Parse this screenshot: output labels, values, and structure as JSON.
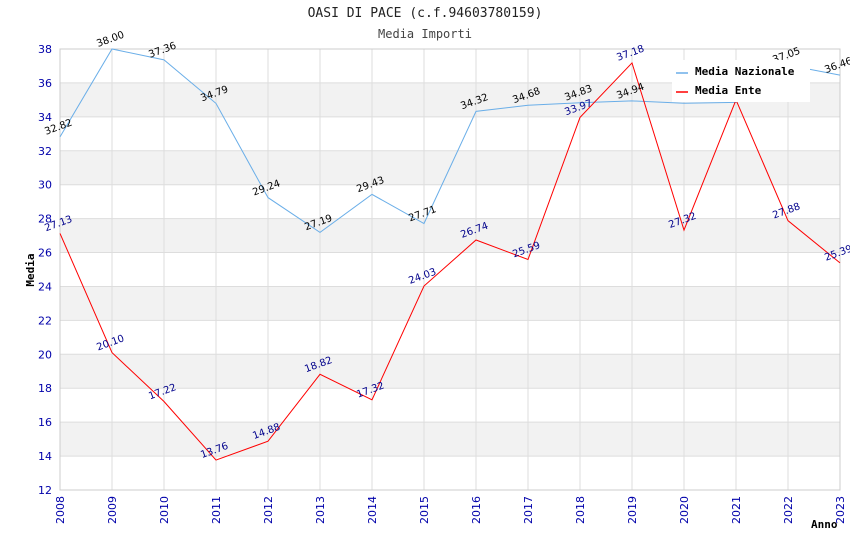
{
  "title": "OASI DI PACE (c.f.94603780159)",
  "subtitle": "Media Importi",
  "chart_data": {
    "type": "line",
    "xlabel": "Anno",
    "ylabel": "Media",
    "ylim": [
      12,
      38
    ],
    "yticks": [
      "12",
      "14",
      "16",
      "18",
      "20",
      "22",
      "24",
      "26",
      "28",
      "30",
      "32",
      "34",
      "36",
      "38"
    ],
    "x": [
      "2008",
      "2009",
      "2010",
      "2011",
      "2012",
      "2013",
      "2014",
      "2015",
      "2016",
      "2017",
      "2018",
      "2019",
      "2020",
      "2021",
      "2022",
      "2023"
    ],
    "grid": true,
    "legend_position": "top-right",
    "series": [
      {
        "name": "Media Nazionale",
        "color": "#6aaee8",
        "values": [
          32.82,
          38.0,
          37.36,
          34.79,
          29.24,
          27.19,
          29.43,
          27.71,
          34.32,
          34.68,
          34.83,
          34.94,
          34.8,
          34.85,
          37.05,
          36.46
        ],
        "labels": [
          "32.82",
          "38.00",
          "37.36",
          "34.79",
          "29.24",
          "27.19",
          "29.43",
          "27.71",
          "34.32",
          "34.68",
          "34.83",
          "34.94",
          "",
          "",
          "37.05",
          "36.46"
        ]
      },
      {
        "name": "Media Ente",
        "color": "#ff0000",
        "values": [
          27.13,
          20.1,
          17.22,
          13.76,
          14.88,
          18.82,
          17.32,
          24.03,
          26.74,
          25.59,
          33.97,
          37.18,
          27.32,
          35.0,
          27.88,
          25.39
        ],
        "labels": [
          "27.13",
          "20.10",
          "17.22",
          "13.76",
          "14.88",
          "18.82",
          "17.32",
          "24.03",
          "26.74",
          "25.59",
          "33.97",
          "37.18",
          "27.32",
          "",
          "27.88",
          "25.39"
        ]
      }
    ]
  }
}
